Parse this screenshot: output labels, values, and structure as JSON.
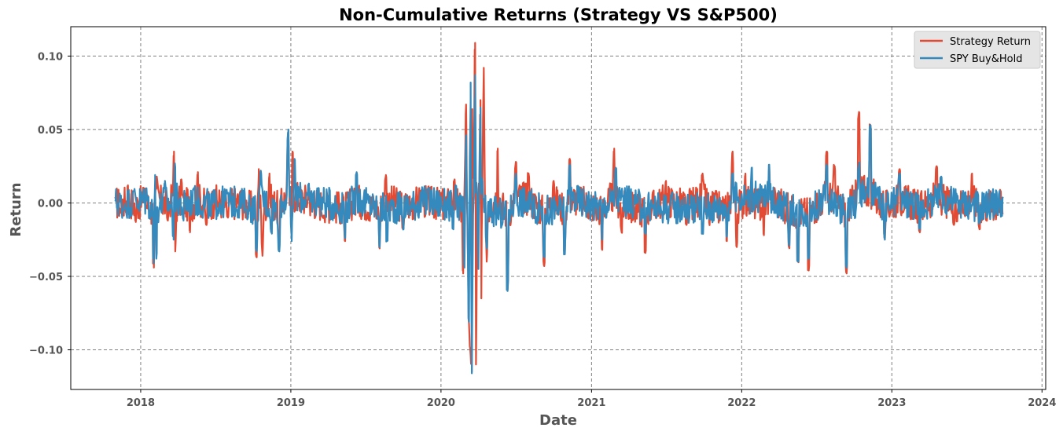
{
  "chart_data": {
    "type": "line",
    "title": "Non-Cumulative Returns (Strategy VS S&P500)",
    "xlabel": "Date",
    "ylabel": "Return",
    "x_ticks": [
      "2018",
      "2019",
      "2020",
      "2021",
      "2022",
      "2023",
      "2024"
    ],
    "y_ticks": [
      "0.10",
      "0.05",
      "0.00",
      "−0.05",
      "−0.10"
    ],
    "y_tick_values": [
      0.1,
      0.05,
      0.0,
      -0.05,
      -0.1
    ],
    "xlim": [
      "2017-07-15",
      "2024-01-10"
    ],
    "ylim": [
      -0.127,
      0.12
    ],
    "grid": true,
    "legend_position": "top-right",
    "x_range": [
      "2017-10-31",
      "2023-09-29"
    ],
    "series": [
      {
        "name": "Strategy Return",
        "color": "#E24A33",
        "points": [
          [
            "2017-10-31",
            0.004
          ],
          [
            "2017-11-15",
            -0.007
          ],
          [
            "2017-12-01",
            0.012
          ],
          [
            "2017-12-20",
            -0.013
          ],
          [
            "2018-01-10",
            0.01
          ],
          [
            "2018-02-02",
            -0.044
          ],
          [
            "2018-02-09",
            0.018
          ],
          [
            "2018-03-08",
            -0.012
          ],
          [
            "2018-03-23",
            0.035
          ],
          [
            "2018-03-26",
            -0.033
          ],
          [
            "2018-04-10",
            0.016
          ],
          [
            "2018-05-01",
            -0.02
          ],
          [
            "2018-05-20",
            0.021
          ],
          [
            "2018-06-10",
            -0.015
          ],
          [
            "2018-07-01",
            0.009
          ],
          [
            "2018-08-01",
            -0.01
          ],
          [
            "2018-09-01",
            0.008
          ],
          [
            "2018-10-10",
            -0.037
          ],
          [
            "2018-10-15",
            0.023
          ],
          [
            "2018-10-24",
            -0.036
          ],
          [
            "2018-11-10",
            0.02
          ],
          [
            "2018-12-04",
            -0.028
          ],
          [
            "2018-12-26",
            0.049
          ],
          [
            "2019-01-03",
            -0.02
          ],
          [
            "2019-01-05",
            0.035
          ],
          [
            "2019-02-15",
            0.01
          ],
          [
            "2019-03-20",
            -0.01
          ],
          [
            "2019-05-13",
            -0.026
          ],
          [
            "2019-06-10",
            0.012
          ],
          [
            "2019-08-05",
            -0.031
          ],
          [
            "2019-08-20",
            0.019
          ],
          [
            "2019-10-01",
            -0.018
          ],
          [
            "2019-11-15",
            0.009
          ],
          [
            "2020-01-10",
            -0.01
          ],
          [
            "2020-02-03",
            0.016
          ],
          [
            "2020-02-24",
            -0.048
          ],
          [
            "2020-03-02",
            0.067
          ],
          [
            "2020-03-09",
            -0.082
          ],
          [
            "2020-03-12",
            -0.099
          ],
          [
            "2020-03-16",
            -0.115
          ],
          [
            "2020-03-17",
            0.06
          ],
          [
            "2020-03-24",
            0.109
          ],
          [
            "2020-03-26",
            -0.11
          ],
          [
            "2020-04-06",
            0.07
          ],
          [
            "2020-04-08",
            -0.065
          ],
          [
            "2020-04-14",
            0.092
          ],
          [
            "2020-04-21",
            -0.04
          ],
          [
            "2020-05-18",
            0.037
          ],
          [
            "2020-06-11",
            -0.059
          ],
          [
            "2020-07-01",
            0.028
          ],
          [
            "2020-08-01",
            0.02
          ],
          [
            "2020-09-08",
            -0.043
          ],
          [
            "2020-10-01",
            0.015
          ],
          [
            "2020-10-28",
            -0.035
          ],
          [
            "2020-11-09",
            0.03
          ],
          [
            "2020-12-01",
            0.01
          ],
          [
            "2021-01-27",
            -0.032
          ],
          [
            "2021-02-25",
            0.037
          ],
          [
            "2021-03-15",
            -0.02
          ],
          [
            "2021-05-12",
            -0.034
          ],
          [
            "2021-07-01",
            0.015
          ],
          [
            "2021-08-20",
            -0.015
          ],
          [
            "2021-09-28",
            0.02
          ],
          [
            "2021-10-15",
            -0.015
          ],
          [
            "2021-11-26",
            -0.026
          ],
          [
            "2021-12-10",
            0.035
          ],
          [
            "2021-12-20",
            -0.03
          ],
          [
            "2022-01-10",
            0.02
          ],
          [
            "2022-02-24",
            -0.022
          ],
          [
            "2022-03-09",
            0.025
          ],
          [
            "2022-04-26",
            -0.03
          ],
          [
            "2022-05-18",
            -0.04
          ],
          [
            "2022-06-13",
            -0.046
          ],
          [
            "2022-07-27",
            0.035
          ],
          [
            "2022-08-15",
            0.025
          ],
          [
            "2022-09-13",
            -0.048
          ],
          [
            "2022-10-13",
            0.062
          ],
          [
            "2022-11-10",
            0.053
          ],
          [
            "2022-12-15",
            -0.025
          ],
          [
            "2023-01-20",
            0.023
          ],
          [
            "2023-03-10",
            -0.02
          ],
          [
            "2023-04-20",
            0.025
          ],
          [
            "2023-06-01",
            -0.015
          ],
          [
            "2023-07-15",
            0.02
          ],
          [
            "2023-08-02",
            -0.018
          ],
          [
            "2023-09-29",
            -0.007
          ]
        ]
      },
      {
        "name": "SPY Buy&Hold",
        "color": "#348ABD",
        "points": [
          [
            "2017-10-31",
            0.002
          ],
          [
            "2017-11-20",
            -0.005
          ],
          [
            "2017-12-15",
            0.008
          ],
          [
            "2018-01-15",
            0.01
          ],
          [
            "2018-02-02",
            -0.041
          ],
          [
            "2018-02-05",
            0.019
          ],
          [
            "2018-02-08",
            -0.038
          ],
          [
            "2018-03-01",
            0.015
          ],
          [
            "2018-03-22",
            -0.025
          ],
          [
            "2018-03-25",
            0.027
          ],
          [
            "2018-04-15",
            -0.012
          ],
          [
            "2018-05-10",
            0.01
          ],
          [
            "2018-06-20",
            -0.009
          ],
          [
            "2018-08-01",
            0.007
          ],
          [
            "2018-09-15",
            -0.005
          ],
          [
            "2018-10-10",
            -0.033
          ],
          [
            "2018-10-20",
            0.022
          ],
          [
            "2018-11-15",
            -0.02
          ],
          [
            "2018-12-04",
            -0.033
          ],
          [
            "2018-12-26",
            0.05
          ],
          [
            "2019-01-03",
            -0.026
          ],
          [
            "2019-01-10",
            0.03
          ],
          [
            "2019-03-10",
            0.01
          ],
          [
            "2019-05-13",
            -0.024
          ],
          [
            "2019-06-10",
            0.021
          ],
          [
            "2019-08-05",
            -0.03
          ],
          [
            "2019-08-23",
            -0.026
          ],
          [
            "2019-10-02",
            -0.018
          ],
          [
            "2019-12-01",
            0.01
          ],
          [
            "2020-01-31",
            -0.018
          ],
          [
            "2020-02-05",
            0.012
          ],
          [
            "2020-02-27",
            -0.044
          ],
          [
            "2020-03-02",
            0.046
          ],
          [
            "2020-03-09",
            -0.081
          ],
          [
            "2020-03-13",
            0.082
          ],
          [
            "2020-03-16",
            -0.116
          ],
          [
            "2020-03-24",
            0.087
          ],
          [
            "2020-04-01",
            -0.045
          ],
          [
            "2020-04-06",
            0.065
          ],
          [
            "2020-04-21",
            -0.03
          ],
          [
            "2020-06-11",
            -0.06
          ],
          [
            "2020-07-01",
            0.02
          ],
          [
            "2020-09-08",
            -0.037
          ],
          [
            "2020-10-28",
            -0.035
          ],
          [
            "2020-11-09",
            0.026
          ],
          [
            "2021-01-27",
            -0.025
          ],
          [
            "2021-03-01",
            0.024
          ],
          [
            "2021-05-12",
            -0.021
          ],
          [
            "2021-09-28",
            -0.021
          ],
          [
            "2021-11-26",
            -0.023
          ],
          [
            "2021-12-10",
            0.02
          ],
          [
            "2022-01-26",
            0.024
          ],
          [
            "2022-03-09",
            0.026
          ],
          [
            "2022-04-26",
            -0.028
          ],
          [
            "2022-05-18",
            -0.04
          ],
          [
            "2022-06-13",
            -0.038
          ],
          [
            "2022-07-27",
            0.026
          ],
          [
            "2022-09-13",
            -0.044
          ],
          [
            "2022-10-13",
            0.026
          ],
          [
            "2022-11-10",
            0.053
          ],
          [
            "2022-12-15",
            -0.025
          ],
          [
            "2023-01-20",
            0.02
          ],
          [
            "2023-03-10",
            -0.018
          ],
          [
            "2023-05-01",
            0.018
          ],
          [
            "2023-08-02",
            -0.014
          ],
          [
            "2023-09-29",
            0.004
          ]
        ]
      }
    ]
  }
}
